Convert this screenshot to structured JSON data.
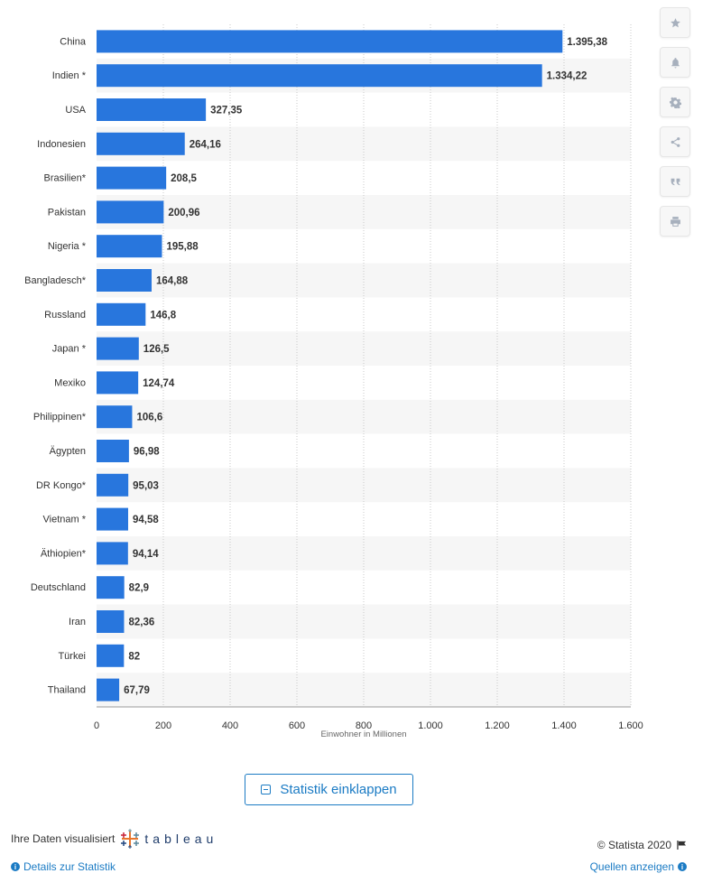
{
  "chart_data": {
    "type": "bar",
    "orientation": "horizontal",
    "categories": [
      "China",
      "Indien *",
      "USA",
      "Indonesien",
      "Brasilien*",
      "Pakistan",
      "Nigeria *",
      "Bangladesch*",
      "Russland",
      "Japan *",
      "Mexiko",
      "Philippinen*",
      "Ägypten",
      "DR Kongo*",
      "Vietnam *",
      "Äthiopien*",
      "Deutschland",
      "Iran",
      "Türkei",
      "Thailand"
    ],
    "values": [
      1395.38,
      1334.22,
      327.35,
      264.16,
      208.5,
      200.96,
      195.88,
      164.88,
      146.8,
      126.5,
      124.74,
      106.6,
      96.98,
      95.03,
      94.58,
      94.14,
      82.9,
      82.36,
      82,
      67.79
    ],
    "value_labels": [
      "1.395,38",
      "1.334,22",
      "327,35",
      "264,16",
      "208,5",
      "200,96",
      "195,88",
      "164,88",
      "146,8",
      "126,5",
      "124,74",
      "106,6",
      "96,98",
      "95,03",
      "94,58",
      "94,14",
      "82,9",
      "82,36",
      "82",
      "67,79"
    ],
    "x_ticks": [
      0,
      200,
      400,
      600,
      800,
      1000,
      1200,
      1400,
      1600
    ],
    "x_tick_labels": [
      "0",
      "200",
      "400",
      "600",
      "800",
      "1.000",
      "1.200",
      "1.400",
      "1.600"
    ],
    "xlim": [
      0,
      1600
    ],
    "xlabel": "Einwohner in Millionen",
    "title": "",
    "grid": true,
    "bar_color": "#2876dd"
  },
  "toolbar": {
    "icons": [
      "star-icon",
      "bell-icon",
      "gear-icon",
      "share-icon",
      "quote-icon",
      "print-icon"
    ]
  },
  "actions": {
    "collapse_label": "Statistik einklappen"
  },
  "footer": {
    "visualized_by": "Ihre Daten visualisiert",
    "tableau_logo": "tableau",
    "details_link": "Details zur Statistik",
    "copyright": "© Statista 2020",
    "sources_link": "Quellen anzeigen"
  }
}
